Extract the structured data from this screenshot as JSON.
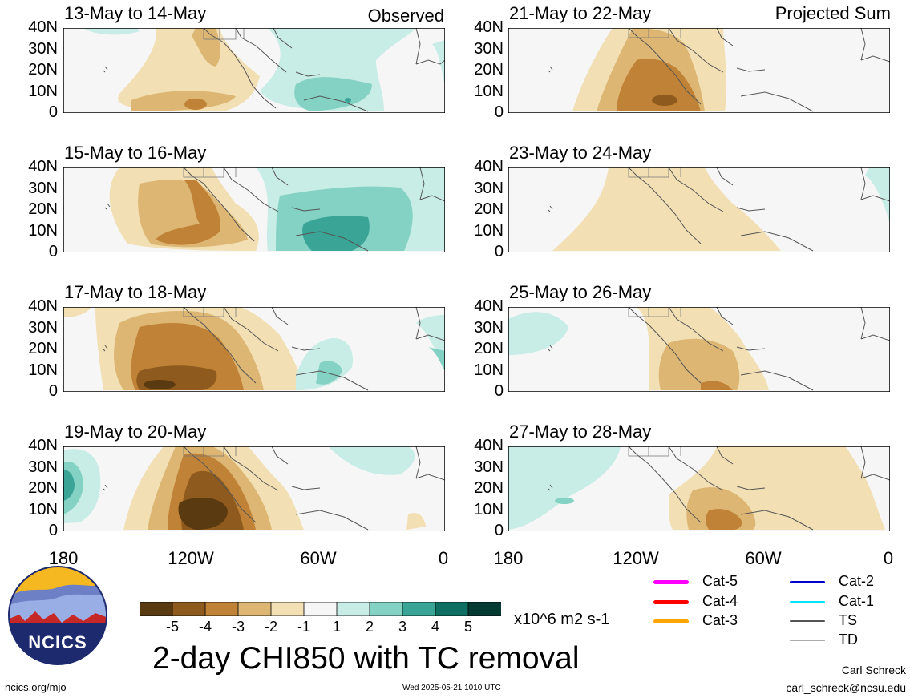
{
  "header": {
    "observed_label": "Observed",
    "projected_label": "Projected Sum"
  },
  "panels": [
    {
      "title": "13-May to 14-May",
      "group": "observed"
    },
    {
      "title": "15-May to 16-May",
      "group": "observed"
    },
    {
      "title": "17-May to 18-May",
      "group": "observed"
    },
    {
      "title": "19-May to 20-May",
      "group": "observed"
    },
    {
      "title": "21-May to 22-May",
      "group": "projected"
    },
    {
      "title": "23-May to 24-May",
      "group": "projected"
    },
    {
      "title": "25-May to 26-May",
      "group": "projected"
    },
    {
      "title": "27-May to 28-May",
      "group": "projected"
    }
  ],
  "axes": {
    "y_ticks": [
      "40N",
      "30N",
      "20N",
      "10N",
      "0"
    ],
    "x_ticks": [
      "180",
      "120W",
      "60W",
      "0"
    ]
  },
  "colorbar": {
    "tick_labels": [
      "-5",
      "-4",
      "-3",
      "-2",
      "-1",
      "1",
      "2",
      "3",
      "4",
      "5"
    ],
    "colors": [
      "#5a3a10",
      "#8e5a1e",
      "#bf8236",
      "#dcb672",
      "#f2e0b4",
      "#f6f6f6",
      "#c8ece6",
      "#84d2c4",
      "#3aa596",
      "#0e6e62",
      "#053a33"
    ],
    "units": "x10^6 m2 s-1"
  },
  "title": "2-day CHI850 with TC removal",
  "legend": {
    "items": [
      {
        "label": "Cat-5",
        "color": "#ff00ff"
      },
      {
        "label": "Cat-4",
        "color": "#ff0000"
      },
      {
        "label": "Cat-3",
        "color": "#ffa500"
      },
      {
        "label": "Cat-2",
        "color": "#0000cc"
      },
      {
        "label": "Cat-1",
        "color": "#00e5ff"
      },
      {
        "label": "TS",
        "color": "#555555"
      },
      {
        "label": "TD",
        "color": "#aaaaaa"
      }
    ]
  },
  "logo": {
    "text": "NCICS"
  },
  "footer": {
    "url": "ncics.org/mjo",
    "timestamp": "Wed 2025-05-21 1010 UTC",
    "author": "Carl Schreck",
    "email": "carl_schreck@ncsu.edu"
  },
  "chart_data": {
    "type": "heatmap",
    "variable": "2-day CHI850 with TC removal",
    "units": "x10^6 m2 s-1",
    "lat_range": [
      0,
      40
    ],
    "lon_range": [
      -180,
      0
    ],
    "panels": [
      {
        "title": "13-May to 14-May",
        "min_value": -3,
        "max_value": 2
      },
      {
        "title": "15-May to 16-May",
        "min_value": -3,
        "max_value": 3
      },
      {
        "title": "17-May to 18-May",
        "min_value": -5,
        "max_value": 2
      },
      {
        "title": "19-May to 20-May",
        "min_value": -5,
        "max_value": 2
      },
      {
        "title": "21-May to 22-May",
        "min_value": -4,
        "max_value": 1
      },
      {
        "title": "23-May to 24-May",
        "min_value": -1,
        "max_value": 1
      },
      {
        "title": "25-May to 26-May",
        "min_value": -3,
        "max_value": 1
      },
      {
        "title": "27-May to 28-May",
        "min_value": -3,
        "max_value": 1
      }
    ]
  }
}
